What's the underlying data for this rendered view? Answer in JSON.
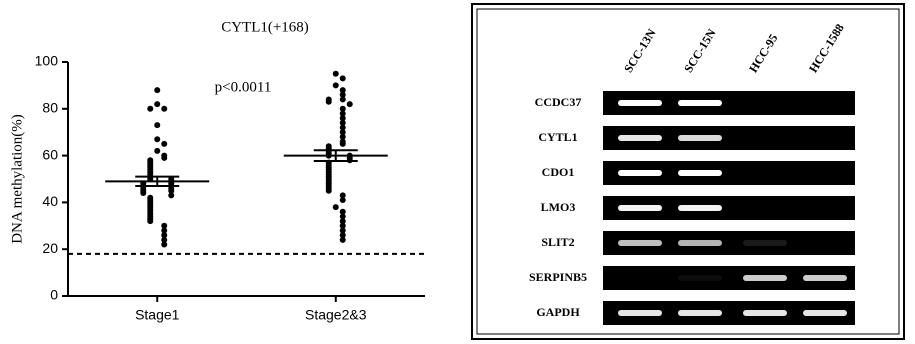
{
  "chart_data": [
    {
      "type": "strip",
      "title": "CYTL1(+168)",
      "y_label": "DNA methylation(%)",
      "annotation": "p<0.0011",
      "categories": [
        "Stage1",
        "Stage2&3"
      ],
      "values": [
        [
          88,
          82,
          80,
          80,
          73,
          67,
          65,
          62,
          60,
          59,
          58,
          57,
          56,
          55,
          54,
          53,
          52,
          51,
          50,
          50,
          49,
          48,
          48,
          47,
          46,
          46,
          45,
          45,
          44,
          43,
          42,
          41,
          40,
          39,
          38,
          37,
          36,
          35,
          34,
          33,
          32,
          30,
          28,
          26,
          24,
          22
        ],
        [
          95,
          93,
          90,
          88,
          86,
          84,
          84,
          83,
          82,
          80,
          78,
          76,
          74,
          72,
          70,
          68,
          66,
          65,
          64,
          63,
          62,
          61,
          60,
          60,
          59,
          58,
          57,
          56,
          55,
          54,
          53,
          52,
          51,
          50,
          49,
          48,
          47,
          46,
          45,
          43,
          41,
          38,
          36,
          34,
          32,
          30,
          28,
          26,
          24
        ]
      ],
      "means": [
        49,
        60
      ],
      "sem": [
        2,
        2.3
      ],
      "threshold": 18,
      "color": "#000000",
      "ylim": [
        0,
        100
      ],
      "yticks": [
        0,
        20,
        40,
        60,
        80,
        100
      ]
    },
    {
      "type": "gel",
      "lanes": [
        "SCC-13N",
        "SCC-15N",
        "HCC-95",
        "HCC-1588"
      ],
      "rows": [
        {
          "label": "CCDC37",
          "bands": [
            1,
            1,
            0,
            0
          ]
        },
        {
          "label": "CYTL1",
          "bands": [
            0.9,
            0.85,
            0,
            0
          ]
        },
        {
          "label": "CDO1",
          "bands": [
            1,
            1,
            0,
            0
          ]
        },
        {
          "label": "LMO3",
          "bands": [
            0.95,
            0.95,
            0,
            0
          ]
        },
        {
          "label": "SLIT2",
          "bands": [
            0.75,
            0.7,
            0.1,
            0
          ]
        },
        {
          "label": "SERPINB5",
          "bands": [
            0,
            0.05,
            0.8,
            0.8
          ]
        },
        {
          "label": "GAPDH",
          "bands": [
            0.9,
            0.9,
            0.9,
            0.9
          ]
        }
      ]
    }
  ]
}
